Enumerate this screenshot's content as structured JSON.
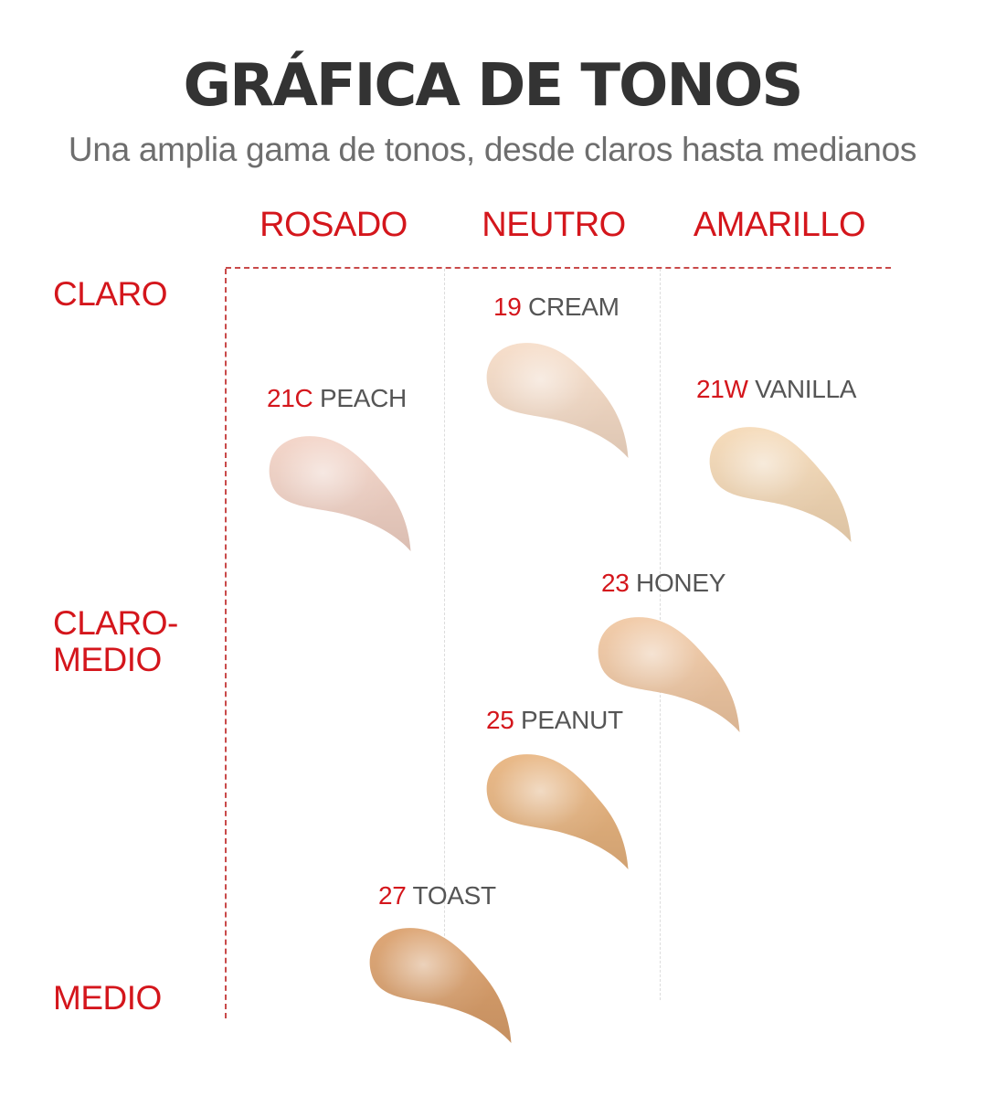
{
  "header": {
    "title": "GRÁFICA DE TONOS",
    "subtitle": "Una amplia gama de tonos, desde claros hasta medianos"
  },
  "columns": {
    "rosado": "ROSADO",
    "neutro": "NEUTRO",
    "amarillo": "AMARILLO"
  },
  "rows": {
    "claro": "CLARO",
    "claro_medio_line1": "CLARO-",
    "claro_medio_line2": "MEDIO",
    "medio": "MEDIO"
  },
  "accent_color": "#d4161c",
  "shades": {
    "cream": {
      "code": "19",
      "name": "CREAM",
      "color": "#f6dcc7",
      "tone": "NEUTRO"
    },
    "peach": {
      "code": "21C",
      "name": "PEACH",
      "color": "#f3d3c6",
      "tone": "ROSADO"
    },
    "vanilla": {
      "code": "21W",
      "name": "VANILLA",
      "color": "#f5d9b6",
      "tone": "AMARILLO"
    },
    "honey": {
      "code": "23",
      "name": "HONEY",
      "color": "#f1c8a3",
      "tone": "NEUTRO"
    },
    "peanut": {
      "code": "25",
      "name": "PEANUT",
      "color": "#e8b47f",
      "tone": "NEUTRO"
    },
    "toast": {
      "code": "27",
      "name": "TOAST",
      "color": "#dba06c",
      "tone": "ROSADO"
    }
  }
}
